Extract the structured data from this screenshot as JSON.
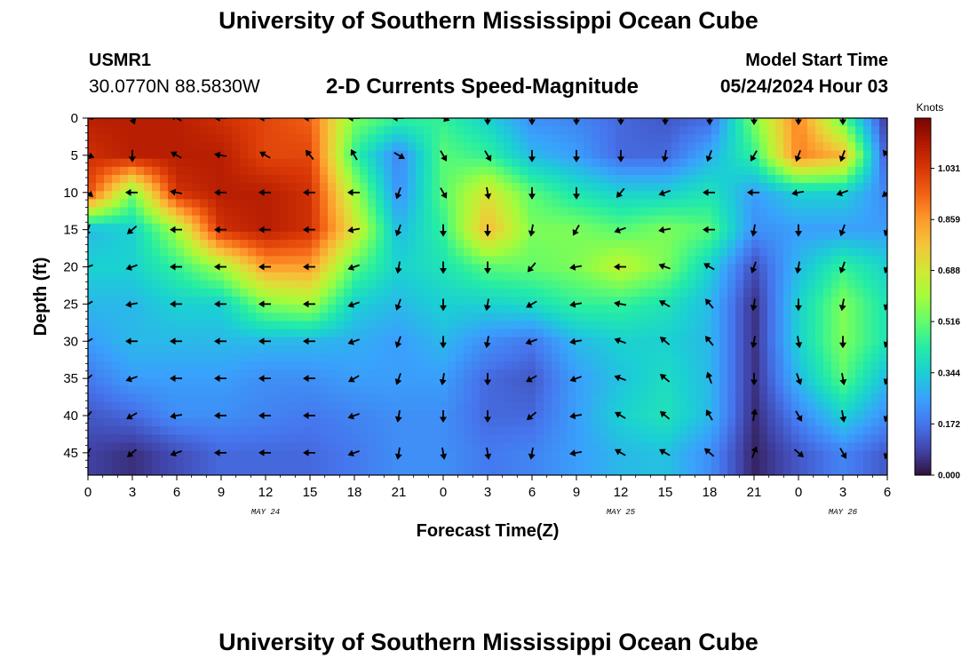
{
  "header": {
    "title": "University of Southern Mississippi Ocean Cube",
    "station": "USMR1",
    "coords": "30.0770N  88.5830W",
    "chart_title": "2-D Currents Speed-Magnitude",
    "model_label": "Model Start Time",
    "model_time": "05/24/2024 Hour 03"
  },
  "footer": {
    "title": "University of Southern Mississippi Ocean Cube"
  },
  "colors": {
    "colormap": [
      "#30123b",
      "#4145ab",
      "#4675ed",
      "#39a2fc",
      "#1bcfd4",
      "#24eca6",
      "#61fc6c",
      "#a4fc3b",
      "#d1e834",
      "#f3c63a",
      "#fe9b2d",
      "#f36315",
      "#d93806",
      "#b11901",
      "#7a0403"
    ],
    "arrow": "#000000"
  },
  "chart_data": {
    "type": "heatmap",
    "xlabel": "Forecast Time(Z)",
    "ylabel": "Depth (ft)",
    "x_tick_labels": [
      "0",
      "3",
      "6",
      "9",
      "12",
      "15",
      "18",
      "21",
      "0",
      "3",
      "6",
      "9",
      "12",
      "15",
      "18",
      "21",
      "0",
      "3",
      "6"
    ],
    "date_labels": [
      {
        "text": "MAY 24",
        "hour": 12
      },
      {
        "text": "MAY 25",
        "hour": 36
      },
      {
        "text": "MAY 26",
        "hour": 51
      }
    ],
    "x_range_hours": [
      0,
      54
    ],
    "y_ticks": [
      0,
      5,
      10,
      15,
      20,
      25,
      30,
      35,
      40,
      45
    ],
    "y_range_ft": [
      0,
      48
    ],
    "colorbar": {
      "title": "Knots",
      "range": [
        0,
        1.2
      ],
      "tick_values": [
        0.0,
        0.172,
        0.344,
        0.516,
        0.688,
        0.859,
        1.031
      ],
      "tick_labels": [
        "0.000",
        "0.172",
        "0.344",
        "0.516",
        "0.688",
        "0.859",
        "1.031"
      ]
    },
    "speed_grid": {
      "units": "knots",
      "hours": [
        0,
        3,
        6,
        9,
        12,
        15,
        18,
        21,
        24,
        27,
        30,
        33,
        36,
        39,
        42,
        45,
        48,
        51,
        54
      ],
      "depths_ft": [
        0,
        5,
        10,
        15,
        20,
        25,
        30,
        35,
        40,
        45
      ],
      "values": [
        [
          1.1,
          1.1,
          1.1,
          1.05,
          1.0,
          0.95,
          0.55,
          0.45,
          0.45,
          0.35,
          0.22,
          0.2,
          0.15,
          0.12,
          0.15,
          0.55,
          0.9,
          0.5,
          0.05
        ],
        [
          1.05,
          1.1,
          1.1,
          1.1,
          1.0,
          1.0,
          0.45,
          0.2,
          0.5,
          0.45,
          0.3,
          0.25,
          0.15,
          0.15,
          0.28,
          0.45,
          0.9,
          0.8,
          0.1
        ],
        [
          1.0,
          0.55,
          1.05,
          1.1,
          1.1,
          1.05,
          0.6,
          0.22,
          0.5,
          0.7,
          0.5,
          0.4,
          0.35,
          0.35,
          0.4,
          0.25,
          0.35,
          0.35,
          0.2
        ],
        [
          0.3,
          0.35,
          0.6,
          1.05,
          1.1,
          1.05,
          0.7,
          0.3,
          0.45,
          0.8,
          0.55,
          0.55,
          0.5,
          0.55,
          0.5,
          0.22,
          0.25,
          0.25,
          0.25
        ],
        [
          0.35,
          0.35,
          0.45,
          0.6,
          0.85,
          0.85,
          0.5,
          0.35,
          0.4,
          0.5,
          0.52,
          0.55,
          0.65,
          0.55,
          0.35,
          0.1,
          0.3,
          0.45,
          0.35
        ],
        [
          0.3,
          0.3,
          0.35,
          0.35,
          0.55,
          0.6,
          0.35,
          0.3,
          0.35,
          0.35,
          0.38,
          0.45,
          0.45,
          0.4,
          0.3,
          0.05,
          0.35,
          0.55,
          0.4
        ],
        [
          0.25,
          0.3,
          0.3,
          0.3,
          0.3,
          0.3,
          0.28,
          0.25,
          0.3,
          0.22,
          0.18,
          0.3,
          0.35,
          0.35,
          0.3,
          0.05,
          0.35,
          0.55,
          0.4
        ],
        [
          0.18,
          0.25,
          0.25,
          0.25,
          0.22,
          0.22,
          0.25,
          0.25,
          0.25,
          0.15,
          0.12,
          0.25,
          0.32,
          0.38,
          0.3,
          0.05,
          0.3,
          0.5,
          0.3
        ],
        [
          0.12,
          0.15,
          0.22,
          0.22,
          0.2,
          0.18,
          0.2,
          0.22,
          0.22,
          0.15,
          0.15,
          0.25,
          0.35,
          0.4,
          0.3,
          0.04,
          0.2,
          0.35,
          0.22
        ],
        [
          0.08,
          0.05,
          0.1,
          0.15,
          0.15,
          0.15,
          0.18,
          0.22,
          0.22,
          0.18,
          0.2,
          0.25,
          0.3,
          0.32,
          0.22,
          0.03,
          0.12,
          0.2,
          0.12
        ]
      ]
    },
    "vectors": {
      "note": "Arrow direction in degrees (0 = pointing up, clockwise).",
      "hours": [
        0,
        3,
        6,
        9,
        12,
        15,
        18,
        21,
        24,
        27,
        30,
        33,
        36,
        39,
        42,
        45,
        48,
        51,
        54
      ],
      "depths_ft": [
        0,
        5,
        10,
        15,
        20,
        25,
        30,
        35,
        40,
        45
      ],
      "angles_deg": [
        [
          280,
          160,
          300,
          270,
          270,
          270,
          270,
          270,
          110,
          180,
          180,
          180,
          180,
          180,
          180,
          180,
          180,
          180,
          120
        ],
        [
          110,
          180,
          300,
          280,
          300,
          320,
          330,
          120,
          150,
          150,
          180,
          180,
          180,
          190,
          200,
          210,
          200,
          200,
          320
        ],
        [
          130,
          270,
          280,
          270,
          270,
          270,
          270,
          200,
          150,
          170,
          180,
          180,
          220,
          250,
          270,
          270,
          260,
          250,
          230
        ],
        [
          200,
          230,
          270,
          270,
          270,
          270,
          260,
          200,
          180,
          180,
          190,
          210,
          250,
          260,
          270,
          190,
          180,
          200,
          200
        ],
        [
          250,
          250,
          270,
          270,
          270,
          270,
          250,
          190,
          180,
          180,
          220,
          260,
          270,
          290,
          300,
          200,
          190,
          200,
          200
        ],
        [
          240,
          260,
          270,
          270,
          270,
          270,
          250,
          200,
          180,
          190,
          240,
          260,
          280,
          300,
          320,
          190,
          180,
          190,
          200
        ],
        [
          240,
          270,
          270,
          270,
          270,
          270,
          250,
          200,
          180,
          190,
          250,
          260,
          290,
          310,
          320,
          190,
          170,
          180,
          200
        ],
        [
          230,
          250,
          270,
          270,
          270,
          270,
          240,
          200,
          190,
          180,
          240,
          250,
          290,
          310,
          340,
          180,
          160,
          170,
          200
        ],
        [
          220,
          240,
          260,
          270,
          270,
          270,
          250,
          190,
          180,
          180,
          230,
          260,
          300,
          310,
          330,
          10,
          150,
          170,
          200
        ],
        [
          210,
          230,
          250,
          270,
          270,
          270,
          250,
          190,
          170,
          170,
          190,
          260,
          300,
          300,
          310,
          20,
          130,
          150,
          200
        ]
      ]
    }
  }
}
